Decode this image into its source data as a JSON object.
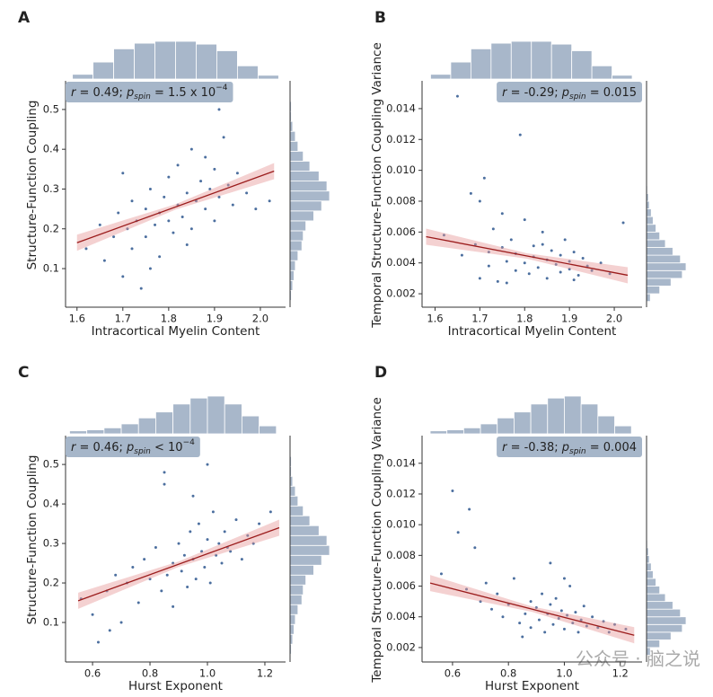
{
  "chart_data": [
    {
      "type": "scatter",
      "panel": "A",
      "xlabel": "Intracortical Myelin Content",
      "ylabel": "Structure-Function Coupling",
      "annotation": {
        "r": "r",
        "r_text": " = 0.49; ",
        "p": "p",
        "sub": "spin",
        "rest": " = 1.5 x 10",
        "sup": "−4"
      },
      "annotation_corner": "upper left",
      "xlim": [
        1.575,
        2.055
      ],
      "ylim": [
        0.003,
        0.572
      ],
      "xticks": [
        1.6,
        1.7,
        1.8,
        1.9,
        {
          "value": 2,
          "label": "2.0"
        }
      ],
      "yticks": [
        0.1,
        0.2,
        0.3,
        0.4,
        0.5
      ],
      "color": "#4c6f9f",
      "fit_color": "#9b1c1c",
      "x": [
        1.62,
        1.65,
        1.66,
        1.68,
        1.69,
        1.7,
        1.71,
        1.72,
        1.72,
        1.73,
        1.74,
        1.75,
        1.75,
        1.76,
        1.77,
        1.78,
        1.78,
        1.79,
        1.8,
        1.8,
        1.81,
        1.82,
        1.82,
        1.83,
        1.84,
        1.85,
        1.85,
        1.86,
        1.87,
        1.88,
        1.88,
        1.89,
        1.9,
        1.9,
        1.91,
        1.92,
        1.93,
        1.94,
        1.95,
        1.97,
        1.99,
        2.02,
        1.7,
        1.76,
        1.84,
        1.91
      ],
      "y": [
        0.15,
        0.21,
        0.12,
        0.18,
        0.24,
        0.08,
        0.2,
        0.27,
        0.15,
        0.22,
        0.05,
        0.25,
        0.18,
        0.3,
        0.21,
        0.24,
        0.13,
        0.28,
        0.22,
        0.33,
        0.19,
        0.26,
        0.36,
        0.23,
        0.29,
        0.4,
        0.2,
        0.27,
        0.32,
        0.25,
        0.38,
        0.3,
        0.22,
        0.35,
        0.28,
        0.43,
        0.31,
        0.26,
        0.34,
        0.29,
        0.25,
        0.27,
        0.34,
        0.1,
        0.16,
        0.5
      ],
      "fit_x": [
        1.6,
        2.03
      ],
      "fit_y": [
        0.165,
        0.345
      ],
      "top_hist": {
        "bins": [
          1.59,
          1.635,
          1.68,
          1.725,
          1.77,
          1.815,
          1.86,
          1.905,
          1.95,
          1.995,
          2.04
        ],
        "counts": [
          5,
          18,
          32,
          38,
          40,
          40,
          37,
          30,
          14,
          4
        ]
      },
      "right_hist": {
        "bins": [
          0.02,
          0.045,
          0.07,
          0.095,
          0.12,
          0.145,
          0.17,
          0.195,
          0.22,
          0.245,
          0.27,
          0.295,
          0.32,
          0.345,
          0.37,
          0.395,
          0.42,
          0.445,
          0.47,
          0.495,
          0.52
        ],
        "counts": [
          1,
          2,
          3,
          4,
          6,
          9,
          10,
          12,
          18,
          24,
          30,
          28,
          22,
          15,
          10,
          6,
          4,
          2,
          1,
          1
        ]
      }
    },
    {
      "type": "scatter",
      "panel": "B",
      "xlabel": "Intracortical Myelin Content",
      "ylabel": "Temporal Structure-Function Coupling Variance",
      "annotation": {
        "r": "r",
        "r_text": " = -0.29; ",
        "p": "p",
        "sub": "spin",
        "rest": " = 0.015"
      },
      "annotation_corner": "upper right",
      "xlim": [
        1.571,
        2.062
      ],
      "ylim": [
        0.00113,
        0.0158
      ],
      "xticks": [
        1.6,
        1.7,
        1.8,
        1.9,
        {
          "value": 2,
          "label": "2.0"
        }
      ],
      "yticks": [
        0.002,
        0.004,
        0.006,
        {
          "value": 0.008,
          "label": "0.008"
        },
        {
          "value": 0.01,
          "label": "0.010"
        },
        0.012,
        0.014
      ],
      "color": "#4c6f9f",
      "fit_color": "#9b1c1c",
      "x": [
        1.62,
        1.65,
        1.66,
        1.68,
        1.69,
        1.7,
        1.71,
        1.72,
        1.72,
        1.73,
        1.74,
        1.75,
        1.75,
        1.76,
        1.77,
        1.78,
        1.78,
        1.79,
        1.8,
        1.8,
        1.81,
        1.82,
        1.82,
        1.83,
        1.84,
        1.85,
        1.85,
        1.86,
        1.87,
        1.88,
        1.88,
        1.89,
        1.9,
        1.9,
        1.91,
        1.92,
        1.93,
        1.94,
        1.95,
        1.97,
        1.99,
        2.02,
        1.7,
        1.76,
        1.84,
        1.91
      ],
      "y": [
        0.0058,
        0.0148,
        0.0045,
        0.0085,
        0.0052,
        0.003,
        0.0095,
        0.0047,
        0.0038,
        0.0062,
        0.0028,
        0.005,
        0.0072,
        0.0041,
        0.0055,
        0.0035,
        0.0046,
        0.0123,
        0.004,
        0.0068,
        0.0033,
        0.0044,
        0.0051,
        0.0037,
        0.006,
        0.0042,
        0.003,
        0.0048,
        0.0039,
        0.0045,
        0.0034,
        0.0055,
        0.0041,
        0.0036,
        0.0047,
        0.0032,
        0.0043,
        0.0038,
        0.0035,
        0.004,
        0.0033,
        0.0066,
        0.008,
        0.0027,
        0.0052,
        0.0029
      ],
      "fit_x": [
        1.58,
        2.03
      ],
      "fit_y": [
        0.0057,
        0.0032
      ],
      "top_hist": {
        "bins": [
          1.59,
          1.635,
          1.68,
          1.725,
          1.77,
          1.815,
          1.86,
          1.905,
          1.95,
          1.995,
          2.04
        ],
        "counts": [
          5,
          18,
          32,
          38,
          40,
          40,
          37,
          30,
          14,
          4
        ]
      },
      "right_hist": {
        "bins": [
          0.0015,
          0.002,
          0.0025,
          0.003,
          0.0035,
          0.004,
          0.0045,
          0.005,
          0.0055,
          0.006,
          0.0065,
          0.007,
          0.0075,
          0.008,
          0.0085,
          0.009
        ],
        "counts": [
          4,
          14,
          26,
          38,
          42,
          36,
          28,
          20,
          14,
          10,
          7,
          5,
          3,
          2,
          1
        ]
      }
    },
    {
      "type": "scatter",
      "panel": "C",
      "xlabel": "Hurst Exponent",
      "ylabel": "Structure-Function Coupling",
      "annotation": {
        "r": "r",
        "r_text": " = 0.46; ",
        "p": "p",
        "sub": "spin",
        "rest": " < 10",
        "sup": "−4"
      },
      "annotation_corner": "upper left",
      "xlim": [
        0.506,
        1.272
      ],
      "ylim": [
        0.0,
        0.573
      ],
      "xticks": [
        0.6,
        0.8,
        {
          "value": 1,
          "label": "1.0"
        },
        1.2
      ],
      "yticks": [
        0.1,
        0.2,
        0.3,
        0.4,
        0.5
      ],
      "color": "#4c6f9f",
      "fit_color": "#9b1c1c",
      "x": [
        0.56,
        0.6,
        0.62,
        0.65,
        0.68,
        0.7,
        0.72,
        0.74,
        0.76,
        0.78,
        0.8,
        0.82,
        0.84,
        0.85,
        0.86,
        0.88,
        0.88,
        0.9,
        0.91,
        0.92,
        0.93,
        0.94,
        0.95,
        0.96,
        0.97,
        0.98,
        0.99,
        1.0,
        1.01,
        1.02,
        1.03,
        1.04,
        1.05,
        1.06,
        1.07,
        1.08,
        1.1,
        1.12,
        1.14,
        1.16,
        1.18,
        1.22,
        0.66,
        0.85,
        0.95,
        1.0
      ],
      "y": [
        0.16,
        0.12,
        0.05,
        0.18,
        0.22,
        0.1,
        0.2,
        0.24,
        0.15,
        0.26,
        0.21,
        0.29,
        0.18,
        0.48,
        0.22,
        0.25,
        0.14,
        0.3,
        0.23,
        0.27,
        0.19,
        0.33,
        0.26,
        0.21,
        0.35,
        0.28,
        0.24,
        0.31,
        0.2,
        0.38,
        0.27,
        0.3,
        0.25,
        0.33,
        0.29,
        0.28,
        0.36,
        0.26,
        0.32,
        0.3,
        0.35,
        0.38,
        0.08,
        0.45,
        0.42,
        0.5
      ],
      "fit_x": [
        0.55,
        1.25
      ],
      "fit_y": [
        0.155,
        0.34
      ],
      "top_hist": {
        "bins": [
          0.52,
          0.58,
          0.64,
          0.7,
          0.76,
          0.82,
          0.88,
          0.94,
          1.0,
          1.06,
          1.12,
          1.18,
          1.24
        ],
        "counts": [
          3,
          4,
          6,
          10,
          16,
          22,
          30,
          36,
          38,
          30,
          18,
          8
        ]
      },
      "right_hist": {
        "bins": [
          0.02,
          0.045,
          0.07,
          0.095,
          0.12,
          0.145,
          0.17,
          0.195,
          0.22,
          0.245,
          0.27,
          0.295,
          0.32,
          0.345,
          0.37,
          0.395,
          0.42,
          0.445,
          0.47,
          0.495,
          0.52
        ],
        "counts": [
          1,
          2,
          3,
          4,
          6,
          9,
          10,
          12,
          18,
          24,
          30,
          28,
          22,
          15,
          10,
          6,
          4,
          2,
          1,
          1
        ]
      }
    },
    {
      "type": "scatter",
      "panel": "D",
      "xlabel": "Hurst Exponent",
      "ylabel": "Temporal Structure-Function Coupling Variance",
      "annotation": {
        "r": "r",
        "r_text": " = -0.38; ",
        "p": "p",
        "sub": "spin",
        "rest": " = 0.004"
      },
      "annotation_corner": "upper right",
      "xlim": [
        0.491,
        1.278
      ],
      "ylim": [
        0.00106,
        0.0158
      ],
      "xticks": [
        0.6,
        0.8,
        {
          "value": 1,
          "label": "1.0"
        },
        1.2
      ],
      "yticks": [
        0.002,
        0.004,
        0.006,
        {
          "value": 0.008,
          "label": "0.008"
        },
        {
          "value": 0.01,
          "label": "0.010"
        },
        0.012,
        0.014
      ],
      "color": "#4c6f9f",
      "fit_color": "#9b1c1c",
      "x": [
        0.56,
        0.6,
        0.62,
        0.65,
        0.68,
        0.7,
        0.72,
        0.74,
        0.76,
        0.78,
        0.8,
        0.82,
        0.84,
        0.85,
        0.86,
        0.88,
        0.88,
        0.9,
        0.91,
        0.92,
        0.93,
        0.94,
        0.95,
        0.96,
        0.97,
        0.98,
        0.99,
        1.0,
        1.01,
        1.02,
        1.03,
        1.04,
        1.05,
        1.06,
        1.07,
        1.08,
        1.1,
        1.12,
        1.14,
        1.16,
        1.18,
        1.22,
        0.66,
        0.85,
        0.95,
        1.0
      ],
      "y": [
        0.0068,
        0.0122,
        0.0095,
        0.0058,
        0.0085,
        0.005,
        0.0062,
        0.0045,
        0.0055,
        0.004,
        0.0048,
        0.0065,
        0.0036,
        0.0148,
        0.0042,
        0.005,
        0.0033,
        0.0046,
        0.0038,
        0.0055,
        0.003,
        0.0042,
        0.0048,
        0.0035,
        0.0052,
        0.0039,
        0.0044,
        0.0032,
        0.0041,
        0.006,
        0.0036,
        0.0043,
        0.003,
        0.0038,
        0.0047,
        0.0034,
        0.004,
        0.0033,
        0.0037,
        0.003,
        0.0035,
        0.0032,
        0.011,
        0.0027,
        0.0075,
        0.0065
      ],
      "fit_x": [
        0.52,
        1.25
      ],
      "fit_y": [
        0.0062,
        0.0028
      ],
      "top_hist": {
        "bins": [
          0.52,
          0.58,
          0.64,
          0.7,
          0.76,
          0.82,
          0.88,
          0.94,
          1.0,
          1.06,
          1.12,
          1.18,
          1.24
        ],
        "counts": [
          3,
          4,
          6,
          10,
          16,
          22,
          30,
          36,
          38,
          30,
          18,
          8
        ]
      },
      "right_hist": {
        "bins": [
          0.0015,
          0.002,
          0.0025,
          0.003,
          0.0035,
          0.004,
          0.0045,
          0.005,
          0.0055,
          0.006,
          0.0065,
          0.007,
          0.0075,
          0.008,
          0.0085,
          0.009
        ],
        "counts": [
          4,
          14,
          26,
          38,
          42,
          36,
          28,
          20,
          14,
          10,
          7,
          5,
          3,
          2,
          1
        ]
      }
    }
  ],
  "watermark": "公众号 · 脑之说"
}
